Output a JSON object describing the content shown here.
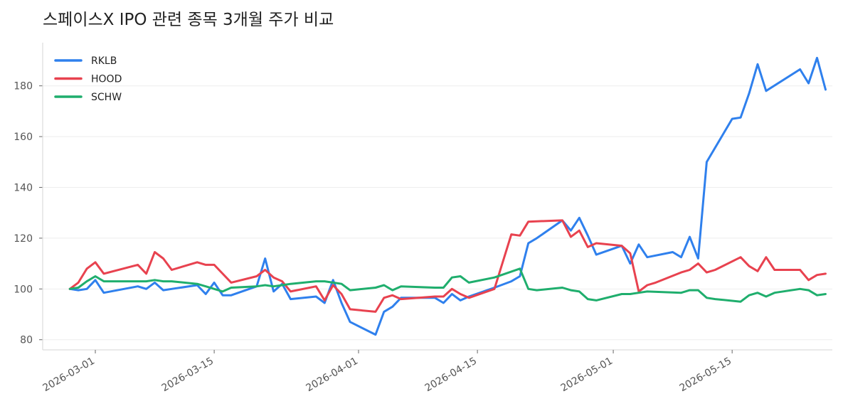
{
  "chart_data": {
    "type": "line",
    "title": "스페이스X IPO 관련 종목 3개월 주가 비교",
    "xlabel": "",
    "ylabel": "",
    "ylim": [
      76,
      197
    ],
    "xlim": [
      "2026-02-23",
      "2026-05-26"
    ],
    "yticks": [
      80,
      100,
      120,
      140,
      160,
      180
    ],
    "xticks": [
      "2026-03-01",
      "2026-03-15",
      "2026-04-01",
      "2026-04-15",
      "2026-05-01",
      "2026-05-15"
    ],
    "grid": "horizontal",
    "legend": "top-left",
    "series": [
      {
        "name": "RKLB",
        "color": "#2f80ed",
        "points": [
          [
            "2026-02-26",
            100
          ],
          [
            "2026-02-27",
            99.5
          ],
          [
            "2026-02-28",
            100
          ],
          [
            "2026-03-01",
            103.5
          ],
          [
            "2026-03-02",
            98.5
          ],
          [
            "2026-03-06",
            101
          ],
          [
            "2026-03-07",
            100
          ],
          [
            "2026-03-08",
            102.5
          ],
          [
            "2026-03-09",
            99.5
          ],
          [
            "2026-03-10",
            100
          ],
          [
            "2026-03-13",
            101.5
          ],
          [
            "2026-03-14",
            98
          ],
          [
            "2026-03-15",
            102.5
          ],
          [
            "2026-03-16",
            97.5
          ],
          [
            "2026-03-17",
            97.5
          ],
          [
            "2026-03-20",
            101
          ],
          [
            "2026-03-21",
            112
          ],
          [
            "2026-03-22",
            99
          ],
          [
            "2026-03-23",
            102
          ],
          [
            "2026-03-24",
            96
          ],
          [
            "2026-03-27",
            97
          ],
          [
            "2026-03-28",
            94.5
          ],
          [
            "2026-03-29",
            103.5
          ],
          [
            "2026-03-30",
            94.5
          ],
          [
            "2026-03-31",
            87
          ],
          [
            "2026-04-03",
            82
          ],
          [
            "2026-04-04",
            91
          ],
          [
            "2026-04-05",
            93
          ],
          [
            "2026-04-06",
            96.5
          ],
          [
            "2026-04-10",
            96.5
          ],
          [
            "2026-04-11",
            94.5
          ],
          [
            "2026-04-12",
            98
          ],
          [
            "2026-04-13",
            95.5
          ],
          [
            "2026-04-14",
            97
          ],
          [
            "2026-04-17",
            100.5
          ],
          [
            "2026-04-19",
            103
          ],
          [
            "2026-04-20",
            105
          ],
          [
            "2026-04-21",
            118
          ],
          [
            "2026-04-22",
            120
          ],
          [
            "2026-04-25",
            127
          ],
          [
            "2026-04-26",
            123
          ],
          [
            "2026-04-27",
            128
          ],
          [
            "2026-04-28",
            121
          ],
          [
            "2026-04-29",
            113.5
          ],
          [
            "2026-05-02",
            117
          ],
          [
            "2026-05-03",
            110
          ],
          [
            "2026-05-04",
            117.5
          ],
          [
            "2026-05-05",
            112.5
          ],
          [
            "2026-05-08",
            114.5
          ],
          [
            "2026-05-09",
            112.5
          ],
          [
            "2026-05-10",
            120.5
          ],
          [
            "2026-05-11",
            112
          ],
          [
            "2026-05-12",
            150
          ],
          [
            "2026-05-15",
            167
          ],
          [
            "2026-05-16",
            167.5
          ],
          [
            "2026-05-17",
            177
          ],
          [
            "2026-05-18",
            188.5
          ],
          [
            "2026-05-19",
            178
          ],
          [
            "2026-05-23",
            186.5
          ],
          [
            "2026-05-24",
            181
          ],
          [
            "2026-05-25",
            191
          ],
          [
            "2026-05-26",
            178.5
          ]
        ]
      },
      {
        "name": "HOOD",
        "color": "#e8424f",
        "points": [
          [
            "2026-02-26",
            100
          ],
          [
            "2026-02-27",
            102.5
          ],
          [
            "2026-02-28",
            108
          ],
          [
            "2026-03-01",
            110.5
          ],
          [
            "2026-03-02",
            106
          ],
          [
            "2026-03-06",
            109.5
          ],
          [
            "2026-03-07",
            106
          ],
          [
            "2026-03-08",
            114.5
          ],
          [
            "2026-03-09",
            112
          ],
          [
            "2026-03-10",
            107.5
          ],
          [
            "2026-03-13",
            110.5
          ],
          [
            "2026-03-14",
            109.5
          ],
          [
            "2026-03-15",
            109.5
          ],
          [
            "2026-03-16",
            106
          ],
          [
            "2026-03-17",
            102.5
          ],
          [
            "2026-03-20",
            105
          ],
          [
            "2026-03-21",
            107.5
          ],
          [
            "2026-03-22",
            104.5
          ],
          [
            "2026-03-23",
            103
          ],
          [
            "2026-03-24",
            99
          ],
          [
            "2026-03-27",
            101
          ],
          [
            "2026-03-28",
            95.5
          ],
          [
            "2026-03-29",
            101.5
          ],
          [
            "2026-03-30",
            98
          ],
          [
            "2026-03-31",
            92
          ],
          [
            "2026-04-03",
            91
          ],
          [
            "2026-04-04",
            96.5
          ],
          [
            "2026-04-05",
            97.5
          ],
          [
            "2026-04-06",
            96
          ],
          [
            "2026-04-10",
            97
          ],
          [
            "2026-04-11",
            97
          ],
          [
            "2026-04-12",
            100
          ],
          [
            "2026-04-13",
            98
          ],
          [
            "2026-04-14",
            96.5
          ],
          [
            "2026-04-17",
            100
          ],
          [
            "2026-04-19",
            121.5
          ],
          [
            "2026-04-20",
            121
          ],
          [
            "2026-04-21",
            126.5
          ],
          [
            "2026-04-25",
            127
          ],
          [
            "2026-04-26",
            120.5
          ],
          [
            "2026-04-27",
            123
          ],
          [
            "2026-04-28",
            116.5
          ],
          [
            "2026-04-29",
            118
          ],
          [
            "2026-05-02",
            117
          ],
          [
            "2026-05-03",
            114
          ],
          [
            "2026-05-04",
            99
          ],
          [
            "2026-05-05",
            101.5
          ],
          [
            "2026-05-06",
            102.5
          ],
          [
            "2026-05-09",
            106.5
          ],
          [
            "2026-05-10",
            107.5
          ],
          [
            "2026-05-11",
            110
          ],
          [
            "2026-05-12",
            106.5
          ],
          [
            "2026-05-13",
            107.5
          ],
          [
            "2026-05-16",
            112.5
          ],
          [
            "2026-05-17",
            109
          ],
          [
            "2026-05-18",
            107
          ],
          [
            "2026-05-19",
            112.5
          ],
          [
            "2026-05-20",
            107.5
          ],
          [
            "2026-05-23",
            107.5
          ],
          [
            "2026-05-24",
            103.5
          ],
          [
            "2026-05-25",
            105.5
          ],
          [
            "2026-05-26",
            106
          ]
        ]
      },
      {
        "name": "SCHW",
        "color": "#1fae6d",
        "points": [
          [
            "2026-02-26",
            100
          ],
          [
            "2026-02-27",
            100.5
          ],
          [
            "2026-02-28",
            103
          ],
          [
            "2026-03-01",
            105
          ],
          [
            "2026-03-02",
            103
          ],
          [
            "2026-03-06",
            103
          ],
          [
            "2026-03-07",
            103
          ],
          [
            "2026-03-08",
            103.5
          ],
          [
            "2026-03-09",
            103
          ],
          [
            "2026-03-10",
            103
          ],
          [
            "2026-03-13",
            102
          ],
          [
            "2026-03-14",
            101
          ],
          [
            "2026-03-15",
            100
          ],
          [
            "2026-03-16",
            99
          ],
          [
            "2026-03-17",
            100.5
          ],
          [
            "2026-03-20",
            101
          ],
          [
            "2026-03-21",
            101.5
          ],
          [
            "2026-03-22",
            101
          ],
          [
            "2026-03-23",
            101.5
          ],
          [
            "2026-03-24",
            102
          ],
          [
            "2026-03-27",
            103
          ],
          [
            "2026-03-28",
            103
          ],
          [
            "2026-03-29",
            102.5
          ],
          [
            "2026-03-30",
            102
          ],
          [
            "2026-03-31",
            99.5
          ],
          [
            "2026-04-03",
            100.5
          ],
          [
            "2026-04-04",
            101.5
          ],
          [
            "2026-04-05",
            99.5
          ],
          [
            "2026-04-06",
            101
          ],
          [
            "2026-04-10",
            100.5
          ],
          [
            "2026-04-11",
            100.5
          ],
          [
            "2026-04-12",
            104.5
          ],
          [
            "2026-04-13",
            105
          ],
          [
            "2026-04-14",
            102.5
          ],
          [
            "2026-04-17",
            104.5
          ],
          [
            "2026-04-20",
            108
          ],
          [
            "2026-04-21",
            100
          ],
          [
            "2026-04-22",
            99.5
          ],
          [
            "2026-04-25",
            100.5
          ],
          [
            "2026-04-26",
            99.5
          ],
          [
            "2026-04-27",
            99
          ],
          [
            "2026-04-28",
            96
          ],
          [
            "2026-04-29",
            95.5
          ],
          [
            "2026-05-02",
            98
          ],
          [
            "2026-05-03",
            98
          ],
          [
            "2026-05-04",
            98.5
          ],
          [
            "2026-05-05",
            99
          ],
          [
            "2026-05-09",
            98.5
          ],
          [
            "2026-05-10",
            99.5
          ],
          [
            "2026-05-11",
            99.5
          ],
          [
            "2026-05-12",
            96.5
          ],
          [
            "2026-05-13",
            96
          ],
          [
            "2026-05-16",
            95
          ],
          [
            "2026-05-17",
            97.5
          ],
          [
            "2026-05-18",
            98.5
          ],
          [
            "2026-05-19",
            97
          ],
          [
            "2026-05-20",
            98.5
          ],
          [
            "2026-05-23",
            100
          ],
          [
            "2026-05-24",
            99.5
          ],
          [
            "2026-05-25",
            97.5
          ],
          [
            "2026-05-26",
            98
          ]
        ]
      }
    ]
  }
}
